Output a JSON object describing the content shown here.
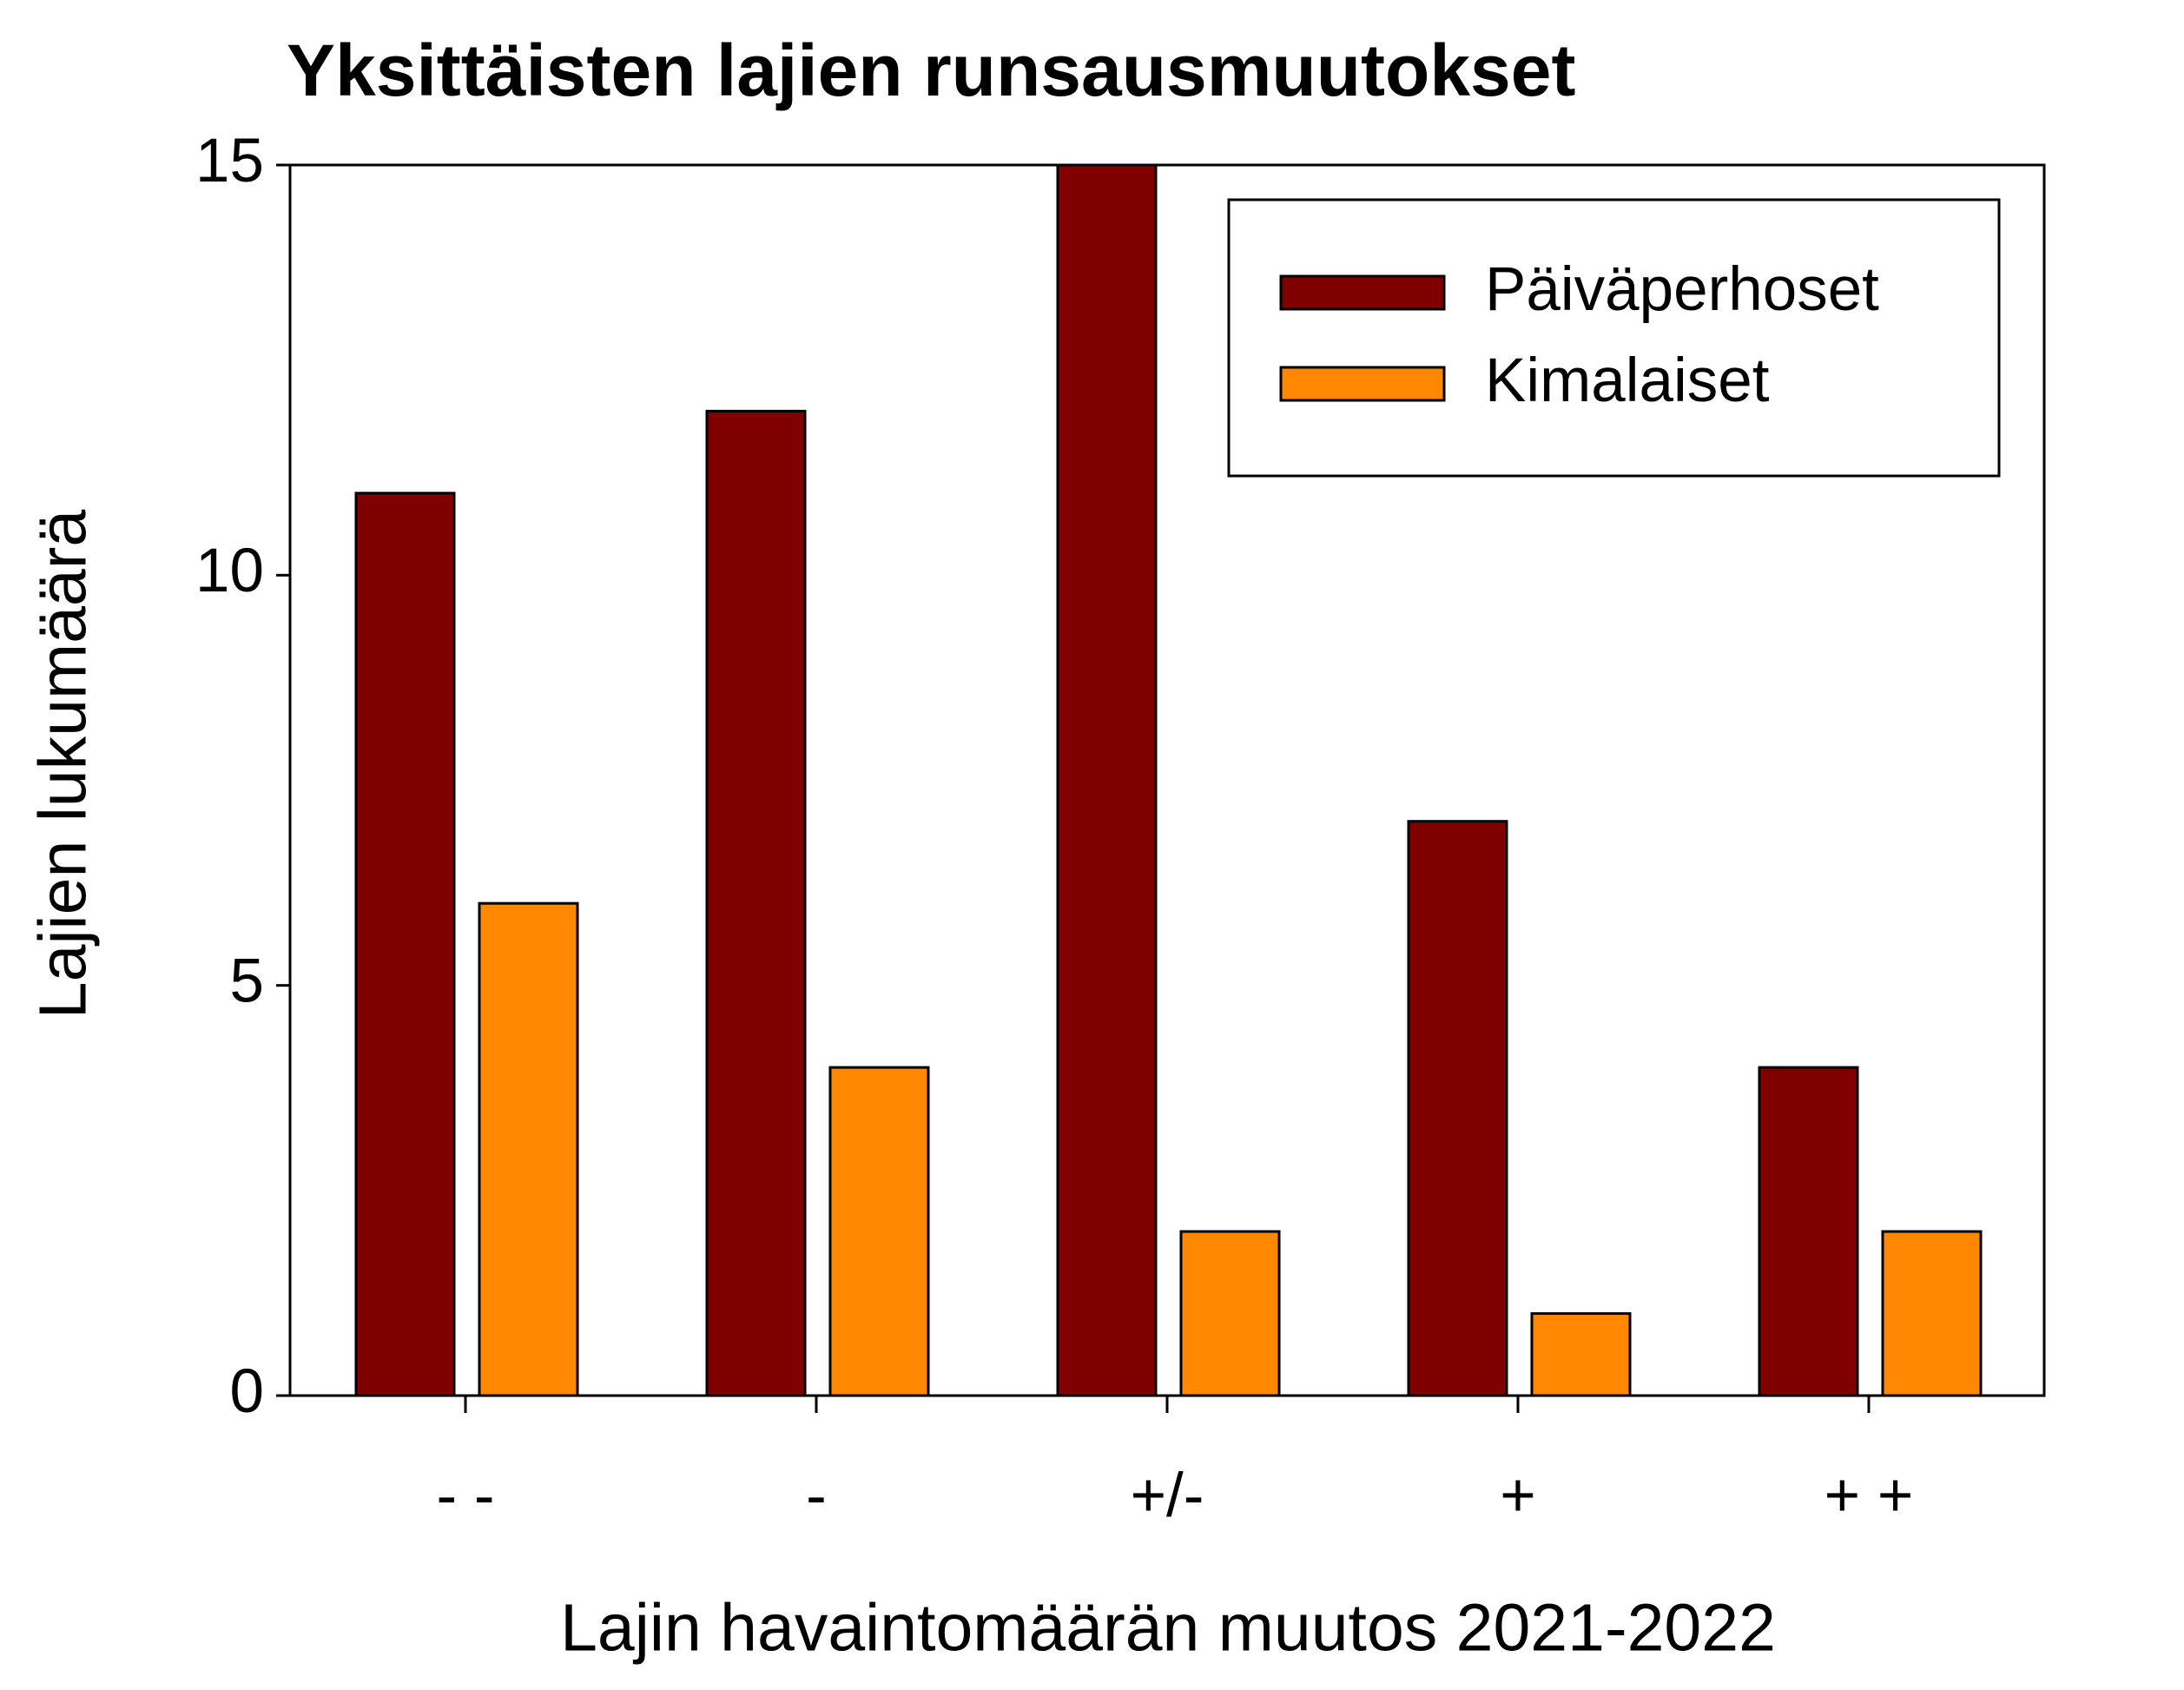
{
  "chart_data": {
    "type": "bar",
    "title": "Yksittäisten lajien runsausmuutokset",
    "x_label": "Lajin havaintomäärän muutos 2021-2022",
    "y_label": "Lajien lukumäärä",
    "categories": [
      "- -",
      "-",
      "+/-",
      "+",
      "+ +"
    ],
    "series": [
      {
        "name": "Päiväperhoset",
        "color": "#800000",
        "values": [
          11,
          12,
          15,
          7,
          4
        ]
      },
      {
        "name": "Kimalaiset",
        "color": "#ff8800",
        "values": [
          6,
          4,
          2,
          1,
          2
        ]
      }
    ],
    "ylim": [
      0,
      15
    ],
    "yticks": [
      0,
      5,
      10,
      15
    ],
    "legend": "upper right"
  }
}
